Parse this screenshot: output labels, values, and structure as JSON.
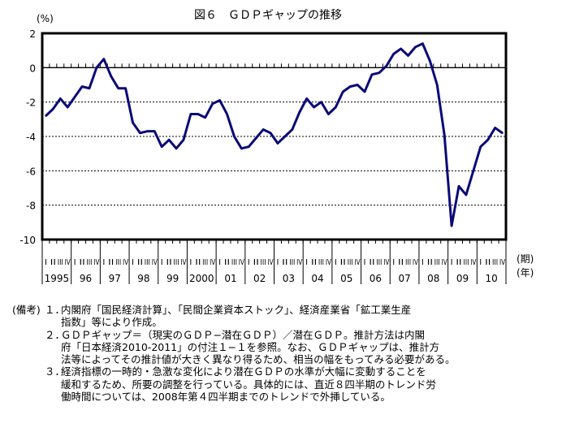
{
  "chart_data": {
    "type": "line",
    "title": "図６　ＧＤＰギャップの推移",
    "ylabel": "(%)",
    "ylim": [
      -10,
      2
    ],
    "yticks": [
      "2",
      "0",
      "-2",
      "-4",
      "-6",
      "-8",
      "-10"
    ],
    "ytick_values": [
      2,
      0,
      -2,
      -4,
      -6,
      -8,
      -10
    ],
    "quarter_labels": [
      "I",
      "II",
      "III",
      "IV"
    ],
    "year_labels": [
      "1995",
      "96",
      "97",
      "98",
      "99",
      "2000",
      "01",
      "02",
      "03",
      "04",
      "05",
      "06",
      "07",
      "08",
      "09",
      "10"
    ],
    "x_unit_period": "(期)",
    "x_unit_year": "(年)",
    "grid": "horizontal dashed",
    "series": [
      {
        "name": "GDPギャップ",
        "color": "#0a0a78",
        "values": [
          -2.8,
          -2.4,
          -1.8,
          -2.3,
          -1.7,
          -1.1,
          -1.2,
          0.0,
          0.5,
          -0.5,
          -1.2,
          -1.2,
          -3.2,
          -3.8,
          -3.7,
          -3.7,
          -4.6,
          -4.2,
          -4.7,
          -4.2,
          -2.7,
          -2.7,
          -2.9,
          -2.1,
          -1.9,
          -2.7,
          -4.0,
          -4.7,
          -4.6,
          -4.1,
          -3.6,
          -3.8,
          -4.4,
          -4.0,
          -3.6,
          -2.6,
          -1.8,
          -2.3,
          -2.0,
          -2.7,
          -2.3,
          -1.4,
          -1.1,
          -1.0,
          -1.4,
          -0.4,
          -0.3,
          0.1,
          0.8,
          1.1,
          0.7,
          1.2,
          1.4,
          0.4,
          -1.0,
          -3.9,
          -9.2,
          -6.9,
          -7.4,
          -6.0,
          -4.6,
          -4.2,
          -3.5,
          -3.8
        ]
      }
    ]
  },
  "notes": {
    "heading": "(備考)",
    "items": [
      {
        "num": "１．",
        "lines": [
          "内閣府「国民経済計算」、「民間企業資本ストック」、経済産業省「鉱工業生産",
          "指数」等により作成。"
        ]
      },
      {
        "num": "２．",
        "lines": [
          "ＧＤＰギャップ＝（現実のＧＤＰ−潜在ＧＤＰ）／潜在ＧＤＰ。推計方法は内閣",
          "府「日本経済2010-2011」の付注１−１を参照。なお、ＧＤＰギャップは、推計方",
          "法等によってその推計値が大きく異なり得るため、相当の幅をもってみる必要がある。"
        ]
      },
      {
        "num": "３．",
        "lines": [
          "経済指標の一時的・急激な変化により潜在ＧＤＰの水準が大幅に変動することを",
          "緩和するため、所要の調整を行っている。具体的には、直近８四半期のトレンド労",
          "働時間については、2008年第４四半期までのトレンドで外挿している。"
        ]
      }
    ]
  }
}
